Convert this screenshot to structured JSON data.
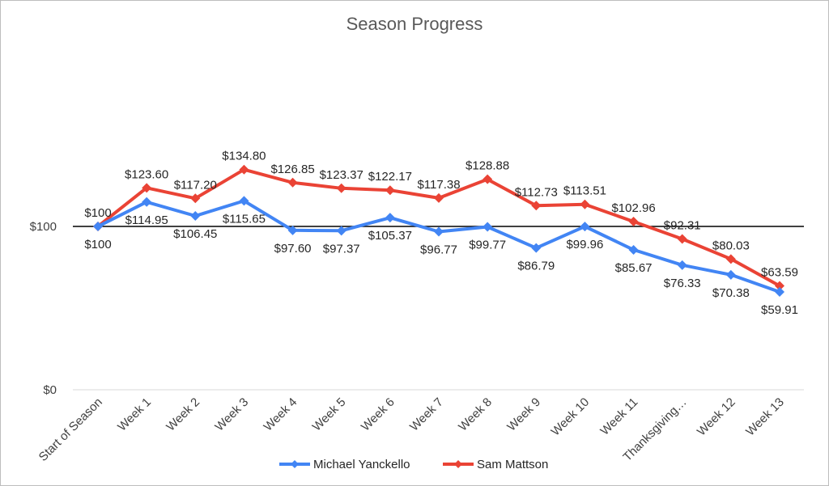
{
  "chart_data": {
    "type": "line",
    "title": "Season Progress",
    "xlabel": "",
    "ylabel": "",
    "ylim": [
      0,
      200
    ],
    "yticks": [
      {
        "value": 0,
        "label": "$0"
      },
      {
        "value": 100,
        "label": "$100"
      }
    ],
    "categories": [
      "Start of Season",
      "Week 1",
      "Week 2",
      "Week 3",
      "Week 4",
      "Week 5",
      "Week 6",
      "Week 7",
      "Week 8",
      "Week 9",
      "Week 10",
      "Week 11",
      "Thanksgiving…",
      "Week 12",
      "Week 13"
    ],
    "series": [
      {
        "name": "Michael Yanckello",
        "color": "#4285f4",
        "values": [
          100,
          114.95,
          106.45,
          115.65,
          97.6,
          97.37,
          105.37,
          96.77,
          99.77,
          86.79,
          99.96,
          85.67,
          76.33,
          70.38,
          59.91
        ],
        "labels": [
          "$100",
          "$114.95",
          "$106.45",
          "$115.65",
          "$97.60",
          "$97.37",
          "$105.37",
          "$96.77",
          "$99.77",
          "$86.79",
          "$99.96",
          "$85.67",
          "$76.33",
          "$70.38",
          "$59.91"
        ]
      },
      {
        "name": "Sam Mattson",
        "color": "#ea4335",
        "values": [
          100,
          123.6,
          117.2,
          134.8,
          126.85,
          123.37,
          122.17,
          117.38,
          128.88,
          112.73,
          113.51,
          102.96,
          92.31,
          80.03,
          63.59
        ],
        "labels": [
          "$100",
          "$123.60",
          "$117.20",
          "$134.80",
          "$126.85",
          "$123.37",
          "$122.17",
          "$117.38",
          "$128.88",
          "$112.73",
          "$113.51",
          "$102.96",
          "$92.31",
          "$80.03",
          "$63.59"
        ]
      }
    ],
    "reference_line": 100,
    "grid": false,
    "legend_position": "bottom"
  }
}
